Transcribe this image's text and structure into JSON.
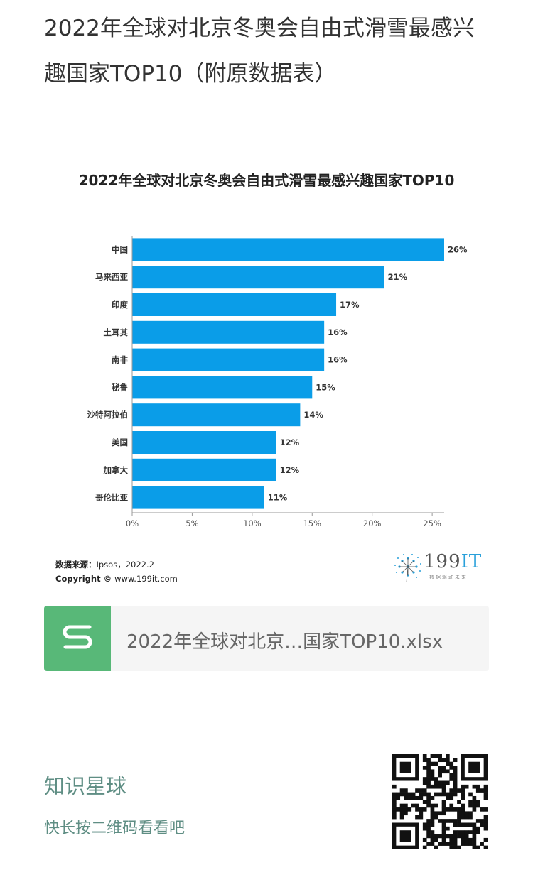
{
  "article": {
    "title": "2022年全球对北京冬奥会自由式滑雪最感兴趣国家TOP10（附原数据表）"
  },
  "chart_data": {
    "type": "bar",
    "orientation": "horizontal",
    "title": "2022年全球对北京冬奥会自由式滑雪最感兴趣国家TOP10",
    "categories": [
      "中国",
      "马来西亚",
      "印度",
      "土耳其",
      "南非",
      "秘鲁",
      "沙特阿拉伯",
      "美国",
      "加拿大",
      "哥伦比亚"
    ],
    "values": [
      26,
      21,
      17,
      16,
      16,
      15,
      14,
      12,
      12,
      11
    ],
    "value_labels": [
      "26%",
      "21%",
      "17%",
      "16%",
      "16%",
      "15%",
      "14%",
      "12%",
      "12%",
      "11%"
    ],
    "xlim": [
      0,
      26
    ],
    "xticks": [
      0,
      5,
      10,
      15,
      20,
      25
    ],
    "xtick_labels": [
      "0%",
      "5%",
      "10%",
      "15%",
      "20%",
      "25%"
    ],
    "bar_color": "#0a9de8",
    "grid": false
  },
  "chart_footer": {
    "source_label": "数据来源：",
    "source_value": "Ipsos，2022.2",
    "copyright_label": "Copyright ©",
    "copyright_value": "www.199it.com"
  },
  "brand": {
    "name_digits": "199",
    "name_letters": "IT",
    "slogan": "数据驱动未来",
    "accent_color": "#29a0da"
  },
  "attachment": {
    "icon": "spreadsheet-s-icon",
    "icon_color": "#58b878",
    "filename": "2022年全球对北京…国家TOP10.xlsx"
  },
  "promo": {
    "title": "知识星球",
    "subtitle": "快长按二维码看看吧",
    "color": "#5f8e84",
    "qr_icon": "qr-code-icon"
  }
}
